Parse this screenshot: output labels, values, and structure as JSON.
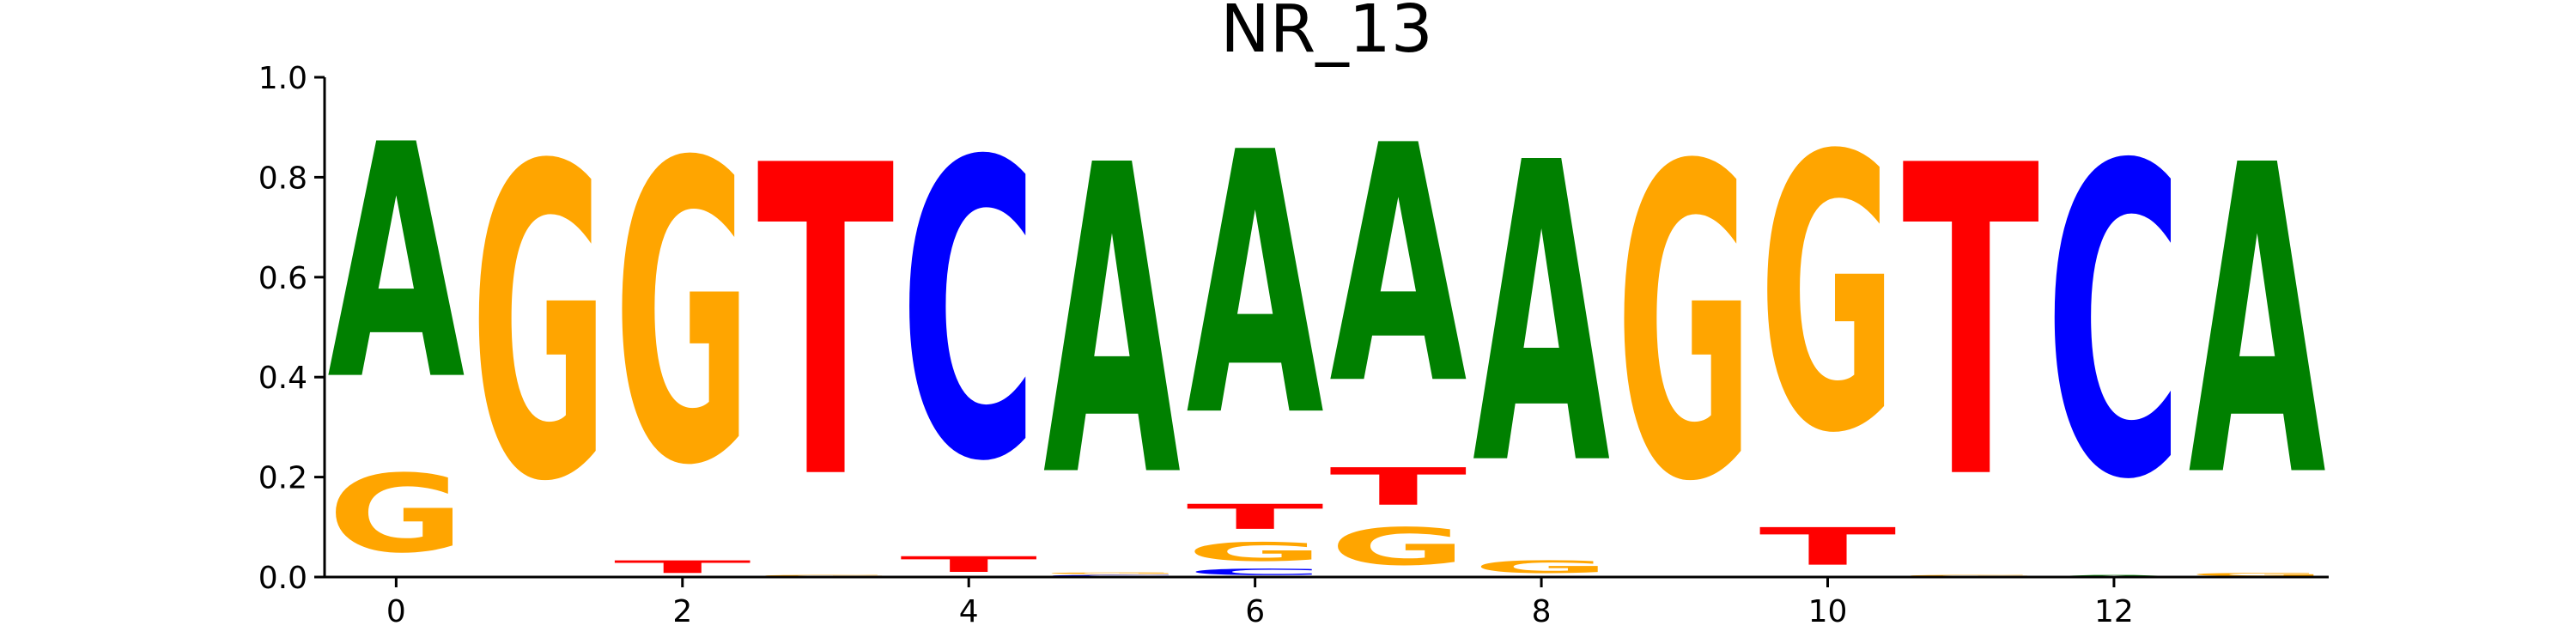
{
  "chart_data": {
    "type": "sequence-logo",
    "title": "NR_13",
    "xlabel": "",
    "ylabel": "",
    "ylim": [
      0.0,
      1.0
    ],
    "xlim": [
      -0.5,
      13.5
    ],
    "y_ticks": [
      "0.0",
      "0.2",
      "0.4",
      "0.6",
      "0.8",
      "1.0"
    ],
    "x_ticks": [
      "0",
      "2",
      "4",
      "6",
      "8",
      "10",
      "12"
    ],
    "y_tick_values": [
      0.0,
      0.2,
      0.4,
      0.6,
      0.8,
      1.0
    ],
    "x_tick_values": [
      0,
      2,
      4,
      6,
      8,
      10,
      12
    ],
    "colors": {
      "A": "#008000",
      "C": "#0000ff",
      "G": "#ffa500",
      "T": "#ff0000"
    },
    "positions": [
      {
        "pos": 0,
        "stack": [
          {
            "base": "G",
            "value": 0.25
          },
          {
            "base": "A",
            "value": 0.75
          }
        ]
      },
      {
        "pos": 1,
        "stack": [
          {
            "base": "G",
            "value": 1.0
          }
        ]
      },
      {
        "pos": 2,
        "stack": [
          {
            "base": "T",
            "value": 0.04
          },
          {
            "base": "G",
            "value": 0.96
          }
        ]
      },
      {
        "pos": 3,
        "stack": [
          {
            "base": "G",
            "value": 0.005
          },
          {
            "base": "T",
            "value": 0.995
          }
        ]
      },
      {
        "pos": 4,
        "stack": [
          {
            "base": "T",
            "value": 0.05
          },
          {
            "base": "C",
            "value": 0.95
          }
        ]
      },
      {
        "pos": 5,
        "stack": [
          {
            "base": "C",
            "value": 0.005
          },
          {
            "base": "G",
            "value": 0.005
          },
          {
            "base": "A",
            "value": 0.99
          }
        ]
      },
      {
        "pos": 6,
        "stack": [
          {
            "base": "C",
            "value": 0.02
          },
          {
            "base": "G",
            "value": 0.06
          },
          {
            "base": "T",
            "value": 0.08
          },
          {
            "base": "A",
            "value": 0.84
          }
        ]
      },
      {
        "pos": 7,
        "stack": [
          {
            "base": "G",
            "value": 0.12
          },
          {
            "base": "T",
            "value": 0.12
          },
          {
            "base": "A",
            "value": 0.76
          }
        ]
      },
      {
        "pos": 8,
        "stack": [
          {
            "base": "G",
            "value": 0.04
          },
          {
            "base": "A",
            "value": 0.96
          }
        ]
      },
      {
        "pos": 9,
        "stack": [
          {
            "base": "G",
            "value": 1.0
          }
        ]
      },
      {
        "pos": 10,
        "stack": [
          {
            "base": "T",
            "value": 0.12
          },
          {
            "base": "G",
            "value": 0.88
          }
        ]
      },
      {
        "pos": 11,
        "stack": [
          {
            "base": "G",
            "value": 0.005
          },
          {
            "base": "T",
            "value": 0.995
          }
        ]
      },
      {
        "pos": 12,
        "stack": [
          {
            "base": "A",
            "value": 0.005
          },
          {
            "base": "C",
            "value": 0.995
          }
        ]
      },
      {
        "pos": 13,
        "stack": [
          {
            "base": "G",
            "value": 0.01
          },
          {
            "base": "A",
            "value": 0.99
          }
        ]
      }
    ]
  }
}
